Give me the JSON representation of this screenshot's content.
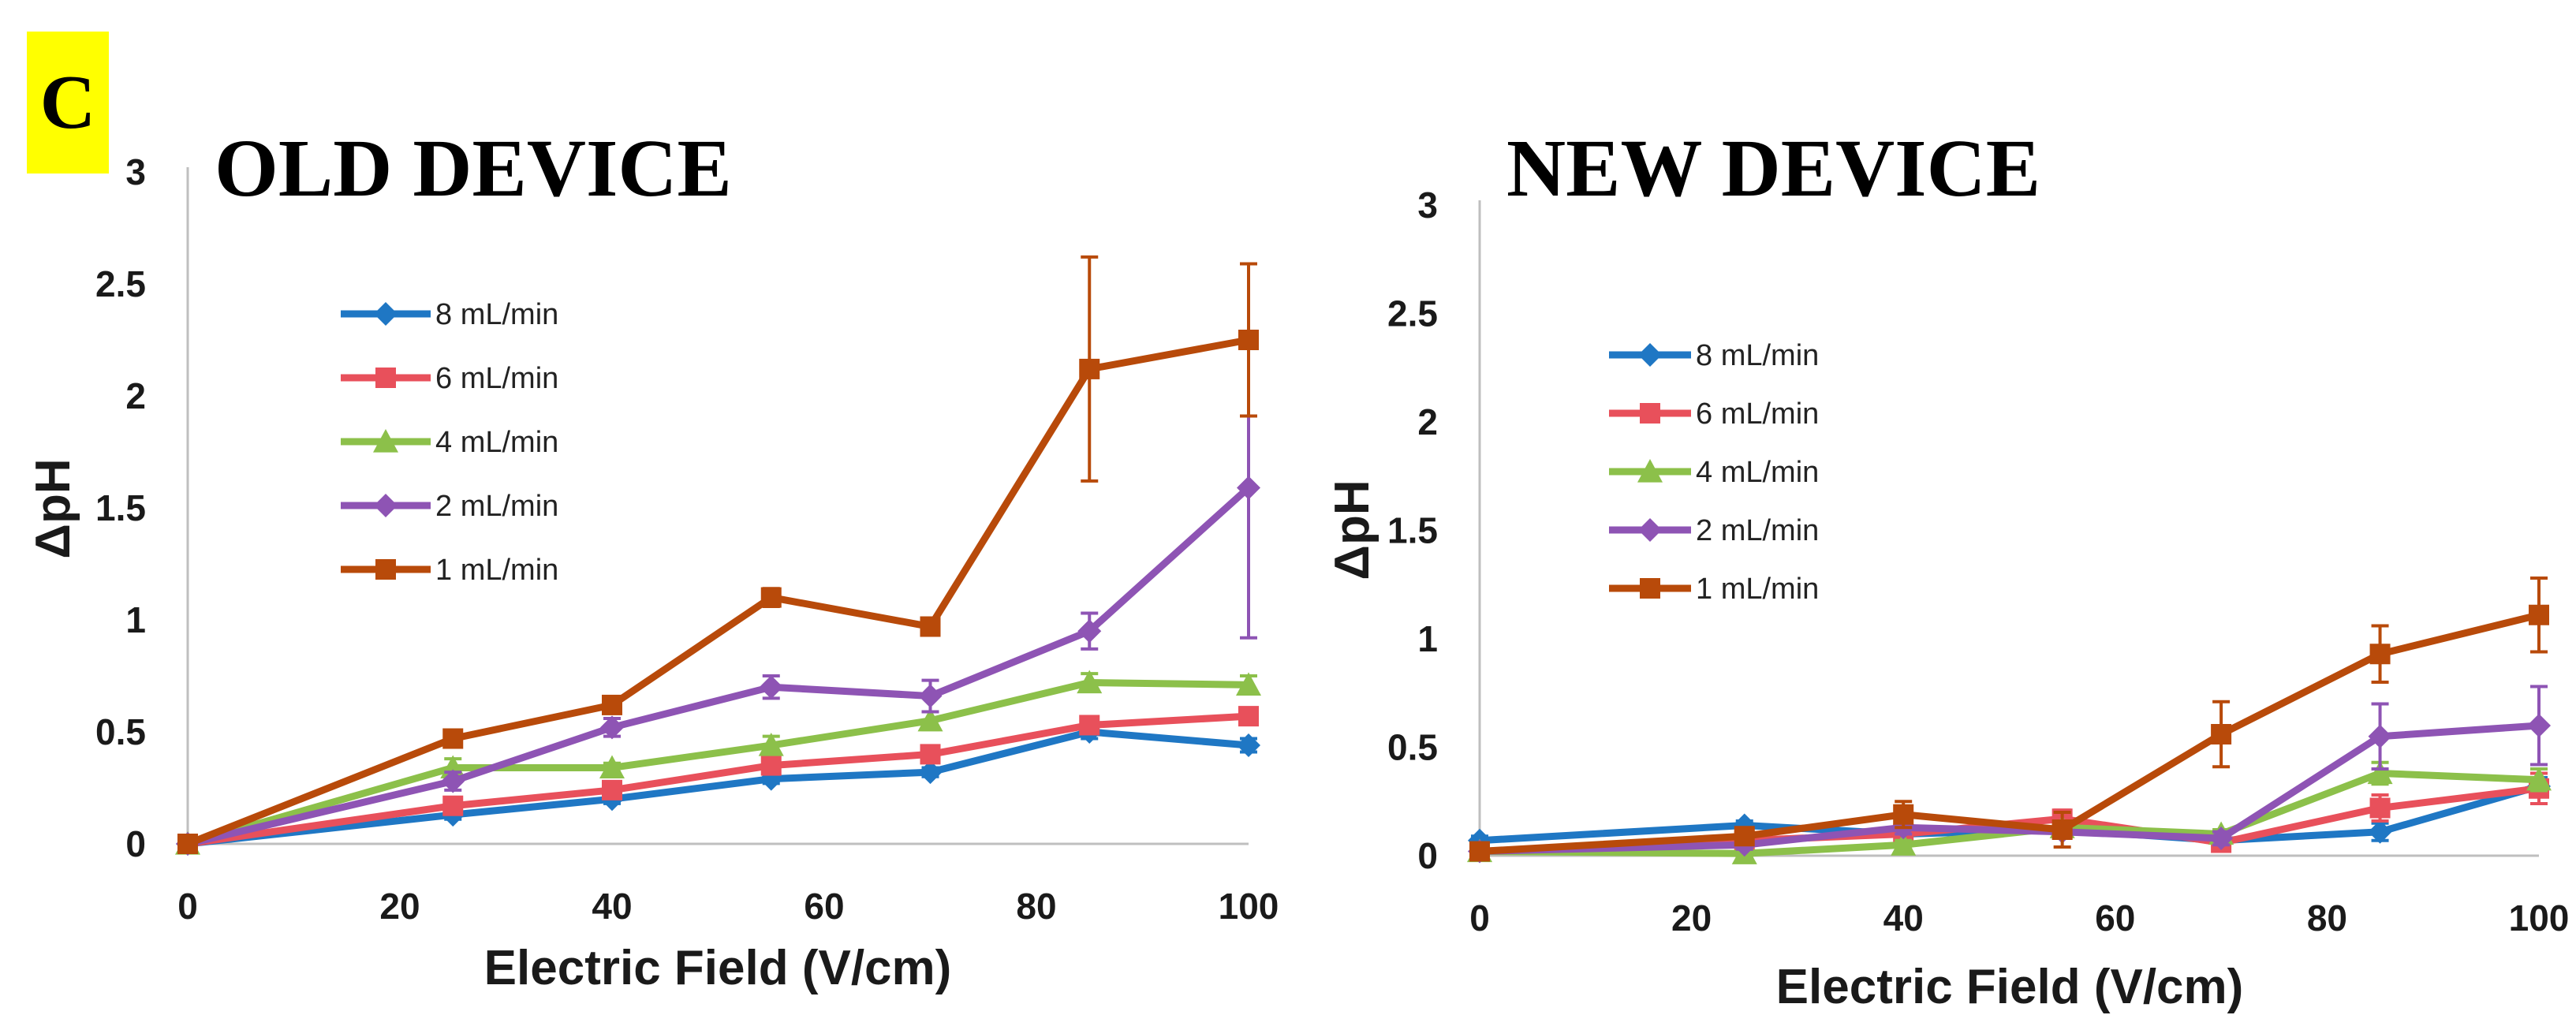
{
  "panel_label": "C",
  "chart_data": [
    {
      "type": "line",
      "title": "OLD DEVICE",
      "xlabel": "Electric Field (V/cm)",
      "ylabel": "ΔpH",
      "xlim": [
        0,
        100
      ],
      "ylim": [
        0,
        3
      ],
      "xticks": [
        "0",
        "20",
        "40",
        "60",
        "80",
        "100"
      ],
      "yticks": [
        "0",
        "0.5",
        "1",
        "1.5",
        "2",
        "2.5",
        "3"
      ],
      "grid": false,
      "legend_position": "upper-left",
      "x": [
        0,
        25,
        40,
        55,
        70,
        85,
        100
      ],
      "series": [
        {
          "name": "8 mL/min",
          "color": "#1f77c4",
          "marker": "diamond",
          "values": [
            0,
            0.13,
            0.2,
            0.29,
            0.32,
            0.5,
            0.44
          ],
          "errors": [
            0,
            0.02,
            0.02,
            0.02,
            0.02,
            0.03,
            0.03
          ]
        },
        {
          "name": "6 mL/min",
          "color": "#e8505b",
          "marker": "square",
          "values": [
            0,
            0.17,
            0.24,
            0.35,
            0.4,
            0.53,
            0.57
          ],
          "errors": [
            0,
            0.02,
            0.02,
            0.02,
            0.03,
            0.03,
            0.03
          ]
        },
        {
          "name": "4 mL/min",
          "color": "#8cc04a",
          "marker": "triangle",
          "values": [
            0,
            0.34,
            0.34,
            0.44,
            0.55,
            0.72,
            0.71
          ],
          "errors": [
            0,
            0.04,
            0.02,
            0.04,
            0.04,
            0.04,
            0.04
          ]
        },
        {
          "name": "2 mL/min",
          "color": "#8e54b4",
          "marker": "diamond",
          "values": [
            0,
            0.28,
            0.52,
            0.7,
            0.66,
            0.95,
            1.59
          ],
          "errors": [
            0,
            0.04,
            0.04,
            0.05,
            0.07,
            0.08,
            0.67
          ]
        },
        {
          "name": "1 mL/min",
          "color": "#b84a0a",
          "marker": "square",
          "values": [
            0,
            0.47,
            0.62,
            1.1,
            0.97,
            2.12,
            2.25
          ],
          "errors": [
            0,
            0.03,
            0.03,
            0.04,
            0.03,
            0.5,
            0.34
          ]
        }
      ]
    },
    {
      "type": "line",
      "title": "NEW DEVICE",
      "xlabel": "Electric Field (V/cm)",
      "ylabel": "ΔpH",
      "xlim": [
        0,
        100
      ],
      "ylim": [
        0,
        3
      ],
      "xticks": [
        "0",
        "20",
        "40",
        "60",
        "80",
        "100"
      ],
      "yticks": [
        "0",
        "0.5",
        "1",
        "1.5",
        "2",
        "2.5",
        "3"
      ],
      "grid": false,
      "legend_position": "upper-left",
      "x": [
        0,
        25,
        40,
        55,
        70,
        85,
        100
      ],
      "series": [
        {
          "name": "8 mL/min",
          "color": "#1f77c4",
          "marker": "diamond",
          "values": [
            0.07,
            0.14,
            0.1,
            0.12,
            0.07,
            0.11,
            0.32
          ],
          "errors": [
            0.02,
            0.02,
            0.02,
            0.02,
            0.02,
            0.04,
            0.04
          ]
        },
        {
          "name": "6 mL/min",
          "color": "#e8505b",
          "marker": "square",
          "values": [
            0.02,
            0.07,
            0.1,
            0.17,
            0.06,
            0.22,
            0.31
          ],
          "errors": [
            0.02,
            0.02,
            0.03,
            0.04,
            0.02,
            0.06,
            0.07
          ]
        },
        {
          "name": "4 mL/min",
          "color": "#8cc04a",
          "marker": "triangle",
          "values": [
            0.02,
            0.01,
            0.05,
            0.13,
            0.1,
            0.38,
            0.35
          ],
          "errors": [
            0.01,
            0.02,
            0.02,
            0.03,
            0.02,
            0.05,
            0.05
          ]
        },
        {
          "name": "2 mL/min",
          "color": "#8e54b4",
          "marker": "diamond",
          "values": [
            0.02,
            0.05,
            0.13,
            0.11,
            0.08,
            0.55,
            0.6
          ],
          "errors": [
            0.01,
            0.02,
            0.03,
            0.03,
            0.03,
            0.15,
            0.18
          ]
        },
        {
          "name": "1 mL/min",
          "color": "#b84a0a",
          "marker": "square",
          "values": [
            0.02,
            0.09,
            0.19,
            0.12,
            0.56,
            0.93,
            1.11
          ],
          "errors": [
            0.01,
            0.02,
            0.06,
            0.08,
            0.15,
            0.13,
            0.17
          ]
        }
      ]
    }
  ]
}
